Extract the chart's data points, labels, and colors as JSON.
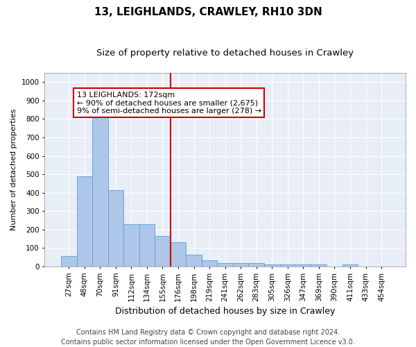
{
  "title": "13, LEIGHLANDS, CRAWLEY, RH10 3DN",
  "subtitle": "Size of property relative to detached houses in Crawley",
  "xlabel": "Distribution of detached houses by size in Crawley",
  "ylabel": "Number of detached properties",
  "categories": [
    "27sqm",
    "48sqm",
    "70sqm",
    "91sqm",
    "112sqm",
    "134sqm",
    "155sqm",
    "176sqm",
    "198sqm",
    "219sqm",
    "241sqm",
    "262sqm",
    "283sqm",
    "305sqm",
    "326sqm",
    "347sqm",
    "369sqm",
    "390sqm",
    "411sqm",
    "433sqm",
    "454sqm"
  ],
  "values": [
    55,
    490,
    820,
    415,
    230,
    230,
    165,
    130,
    65,
    35,
    20,
    20,
    20,
    10,
    10,
    10,
    10,
    0,
    10,
    0,
    0
  ],
  "bar_color": "#aec6e8",
  "bar_edge_color": "#5a9fd4",
  "vline_x": 6.5,
  "vline_color": "#cc0000",
  "annotation_text": "13 LEIGHLANDS: 172sqm\n← 90% of detached houses are smaller (2,675)\n9% of semi-detached houses are larger (278) →",
  "annotation_box_color": "#ffffff",
  "annotation_box_edge_color": "#cc0000",
  "ylim": [
    0,
    1050
  ],
  "yticks": [
    0,
    100,
    200,
    300,
    400,
    500,
    600,
    700,
    800,
    900,
    1000
  ],
  "background_color": "#e8eef7",
  "footer_line1": "Contains HM Land Registry data © Crown copyright and database right 2024.",
  "footer_line2": "Contains public sector information licensed under the Open Government Licence v3.0.",
  "title_fontsize": 11,
  "subtitle_fontsize": 9.5,
  "xlabel_fontsize": 9,
  "ylabel_fontsize": 8,
  "tick_fontsize": 7.5,
  "annotation_fontsize": 8,
  "footer_fontsize": 7
}
